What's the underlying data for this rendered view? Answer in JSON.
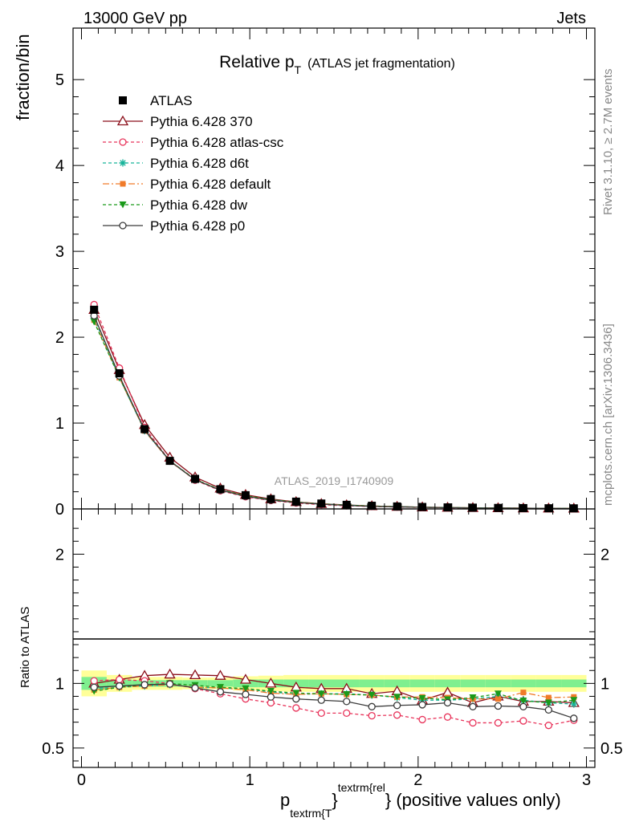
{
  "header": {
    "left": "13000 GeV pp",
    "right": "Jets",
    "side_top": "Rivet 3.1.10, ≥ 2.7M events",
    "side_bottom": "mcplots.cern.ch [arXiv:1306.3436]",
    "watermark": "ATLAS_2019_I1740909"
  },
  "chart_data": [
    {
      "type": "line",
      "panel": "main",
      "title": {
        "main": "Relative p",
        "sub": "T",
        "suffix": "(ATLAS jet fragmentation)"
      },
      "ylabel": "fraction/bin",
      "xlim": [
        -0.05,
        3.05
      ],
      "ylim": [
        0,
        5.6
      ],
      "yticks": [
        0,
        1,
        2,
        3,
        4,
        5
      ],
      "x": [
        0.075,
        0.225,
        0.375,
        0.525,
        0.675,
        0.825,
        0.975,
        1.125,
        1.275,
        1.425,
        1.575,
        1.725,
        1.875,
        2.025,
        2.175,
        2.325,
        2.475,
        2.625,
        2.775,
        2.925
      ],
      "data": {
        "name": "ATLAS",
        "values": [
          2.32,
          1.58,
          0.93,
          0.56,
          0.35,
          0.23,
          0.16,
          0.115,
          0.085,
          0.063,
          0.048,
          0.037,
          0.029,
          0.023,
          0.018,
          0.015,
          0.012,
          0.01,
          0.008,
          0.007
        ]
      },
      "series": [
        {
          "name": "Pythia 6.428 370",
          "color": "#8b0f1a",
          "dash": "solid",
          "marker": "triangle-open",
          "values": [
            2.32,
            1.62,
            0.98,
            0.6,
            0.37,
            0.24,
            0.165,
            0.115,
            0.082,
            0.06,
            0.046,
            0.034,
            0.027,
            0.02,
            0.017,
            0.013,
            0.011,
            0.0087,
            0.0072,
            0.006
          ]
        },
        {
          "name": "Pythia 6.428 atlas-csc",
          "color": "#e8335a",
          "dash": "4,3",
          "marker": "circle-open",
          "values": [
            2.38,
            1.64,
            0.95,
            0.56,
            0.335,
            0.212,
            0.142,
            0.098,
            0.069,
            0.049,
            0.037,
            0.028,
            0.022,
            0.017,
            0.013,
            0.0104,
            0.0083,
            0.0071,
            0.0054,
            0.005
          ]
        },
        {
          "name": "Pythia 6.428 d6t",
          "color": "#17b39a",
          "dash": "4,3",
          "marker": "star",
          "values": [
            2.22,
            1.53,
            0.91,
            0.555,
            0.34,
            0.222,
            0.153,
            0.107,
            0.078,
            0.058,
            0.044,
            0.034,
            0.026,
            0.02,
            0.016,
            0.013,
            0.011,
            0.0085,
            0.0068,
            0.006
          ]
        },
        {
          "name": "Pythia 6.428 default",
          "color": "#f07b2a",
          "dash": "8,3,2,3",
          "marker": "square",
          "values": [
            2.2,
            1.53,
            0.91,
            0.555,
            0.34,
            0.222,
            0.152,
            0.106,
            0.078,
            0.058,
            0.044,
            0.034,
            0.026,
            0.02,
            0.016,
            0.013,
            0.011,
            0.0093,
            0.0071,
            0.0063
          ]
        },
        {
          "name": "Pythia 6.428 dw",
          "color": "#1a9a1a",
          "dash": "4,3",
          "marker": "triangle-down",
          "values": [
            2.18,
            1.53,
            0.92,
            0.56,
            0.345,
            0.223,
            0.154,
            0.108,
            0.078,
            0.058,
            0.044,
            0.034,
            0.026,
            0.02,
            0.016,
            0.013,
            0.011,
            0.0085,
            0.0068,
            0.0061
          ]
        },
        {
          "name": "Pythia 6.428 p0",
          "color": "#3a3a3a",
          "dash": "solid",
          "marker": "circle-open",
          "values": [
            2.25,
            1.55,
            0.92,
            0.56,
            0.34,
            0.218,
            0.147,
            0.102,
            0.075,
            0.055,
            0.041,
            0.03,
            0.024,
            0.019,
            0.015,
            0.012,
            0.01,
            0.0083,
            0.0064,
            0.0051
          ]
        }
      ]
    },
    {
      "type": "line",
      "panel": "ratio",
      "ylabel": "Ratio to ATLAS",
      "xlabel": {
        "p": "p",
        "sub": "textrm{T",
        "brace_open": "}",
        "sup": "textrm{rel",
        "rest": "} (positive values only)"
      },
      "xlim": [
        -0.05,
        3.05
      ],
      "xticks": [
        0,
        1,
        2,
        3
      ],
      "ylim": [
        0.35,
        2.35
      ],
      "yticks": [
        0.5,
        1,
        2
      ],
      "bands": {
        "stat_half_width": [
          0.05,
          0.03,
          0.025,
          0.025,
          0.025,
          0.025,
          0.03,
          0.03,
          0.03,
          0.03,
          0.03,
          0.03,
          0.03,
          0.03,
          0.03,
          0.03,
          0.03,
          0.03,
          0.03,
          0.03
        ],
        "total_half_width": [
          0.1,
          0.065,
          0.05,
          0.05,
          0.045,
          0.045,
          0.055,
          0.06,
          0.065,
          0.065,
          0.065,
          0.065,
          0.065,
          0.065,
          0.065,
          0.065,
          0.065,
          0.065,
          0.065,
          0.065
        ]
      },
      "series": [
        {
          "name": "Pythia 6.428 370",
          "values": [
            1.0,
            1.03,
            1.06,
            1.07,
            1.065,
            1.06,
            1.03,
            1.0,
            0.97,
            0.96,
            0.96,
            0.92,
            0.94,
            0.87,
            0.93,
            0.85,
            0.9,
            0.86,
            0.86,
            0.85
          ]
        },
        {
          "name": "Pythia 6.428 atlas-csc",
          "values": [
            1.02,
            1.03,
            1.02,
            1.0,
            0.96,
            0.92,
            0.88,
            0.85,
            0.81,
            0.77,
            0.77,
            0.75,
            0.755,
            0.72,
            0.74,
            0.695,
            0.695,
            0.71,
            0.675,
            0.715
          ]
        },
        {
          "name": "Pythia 6.428 d6t",
          "values": [
            0.96,
            0.97,
            0.98,
            0.99,
            0.97,
            0.965,
            0.955,
            0.935,
            0.915,
            0.92,
            0.92,
            0.91,
            0.89,
            0.87,
            0.87,
            0.88,
            0.9,
            0.87,
            0.85,
            0.84
          ]
        },
        {
          "name": "Pythia 6.428 default",
          "values": [
            0.95,
            0.97,
            0.98,
            0.99,
            0.97,
            0.965,
            0.95,
            0.925,
            0.915,
            0.92,
            0.915,
            0.91,
            0.895,
            0.895,
            0.89,
            0.88,
            0.88,
            0.93,
            0.89,
            0.895
          ]
        },
        {
          "name": "Pythia 6.428 dw",
          "values": [
            0.94,
            0.97,
            0.99,
            1.0,
            0.985,
            0.97,
            0.96,
            0.94,
            0.925,
            0.92,
            0.915,
            0.91,
            0.895,
            0.885,
            0.875,
            0.89,
            0.92,
            0.865,
            0.85,
            0.87
          ]
        },
        {
          "name": "Pythia 6.428 p0",
          "values": [
            0.97,
            0.98,
            0.99,
            0.995,
            0.965,
            0.935,
            0.915,
            0.895,
            0.88,
            0.87,
            0.86,
            0.82,
            0.83,
            0.835,
            0.85,
            0.82,
            0.825,
            0.82,
            0.795,
            0.73
          ]
        }
      ]
    }
  ]
}
